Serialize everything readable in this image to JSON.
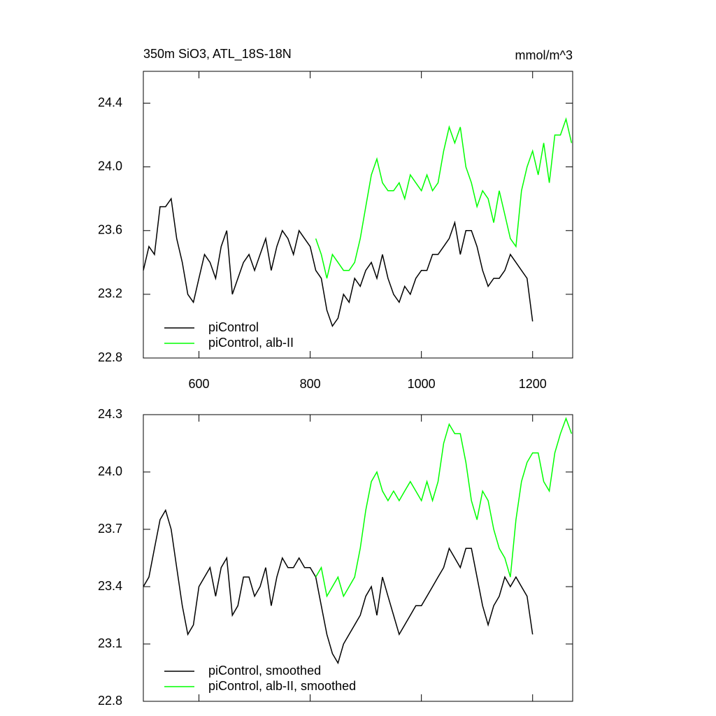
{
  "chart_data": [
    {
      "type": "line",
      "title": "350m SiO3, ATL_18S-18N",
      "units": "mmol/m^3",
      "xlim": [
        500,
        1272
      ],
      "xticks": [
        600,
        800,
        1000,
        1200
      ],
      "show_xtick_labels": true,
      "ylim": [
        22.8,
        24.6
      ],
      "yticks": [
        22.8,
        23.2,
        23.6,
        {
          "value": 24,
          "label": "24.0"
        },
        24.4
      ],
      "legend": "lower left",
      "series": [
        {
          "name": "piControl",
          "color": "#000000",
          "x": [
            500,
            510,
            520,
            530,
            540,
            550,
            560,
            570,
            580,
            590,
            600,
            610,
            620,
            630,
            640,
            650,
            660,
            670,
            680,
            690,
            700,
            710,
            720,
            730,
            740,
            750,
            760,
            770,
            780,
            790,
            800,
            810,
            820,
            830,
            840,
            850,
            860,
            870,
            880,
            890,
            900,
            910,
            920,
            930,
            940,
            950,
            960,
            970,
            980,
            990,
            1000,
            1010,
            1020,
            1030,
            1040,
            1050,
            1060,
            1070,
            1080,
            1090,
            1100,
            1110,
            1120,
            1130,
            1140,
            1150,
            1160,
            1170,
            1180,
            1190,
            1200
          ],
          "values": [
            23.35,
            23.5,
            23.45,
            23.75,
            23.75,
            23.8,
            23.55,
            23.4,
            23.2,
            23.15,
            23.3,
            23.45,
            23.4,
            23.3,
            23.5,
            23.6,
            23.2,
            23.3,
            23.4,
            23.45,
            23.35,
            23.45,
            23.55,
            23.35,
            23.5,
            23.6,
            23.55,
            23.45,
            23.6,
            23.55,
            23.5,
            23.35,
            23.3,
            23.1,
            23.0,
            23.05,
            23.2,
            23.15,
            23.3,
            23.25,
            23.35,
            23.4,
            23.3,
            23.45,
            23.3,
            23.2,
            23.15,
            23.25,
            23.2,
            23.3,
            23.35,
            23.35,
            23.45,
            23.45,
            23.5,
            23.55,
            23.65,
            23.45,
            23.6,
            23.6,
            23.5,
            23.35,
            23.25,
            23.3,
            23.3,
            23.35,
            23.45,
            23.4,
            23.35,
            23.3,
            23.03
          ]
        },
        {
          "name": "piControl, alb-II",
          "color": "#00ff00",
          "x": [
            810,
            820,
            830,
            840,
            850,
            860,
            870,
            880,
            890,
            900,
            910,
            920,
            930,
            940,
            950,
            960,
            970,
            980,
            990,
            1000,
            1010,
            1020,
            1030,
            1040,
            1050,
            1060,
            1070,
            1080,
            1090,
            1100,
            1110,
            1120,
            1130,
            1140,
            1150,
            1160,
            1170,
            1180,
            1190,
            1200,
            1210,
            1220,
            1230,
            1240,
            1250,
            1260,
            1270
          ],
          "values": [
            23.55,
            23.45,
            23.3,
            23.45,
            23.4,
            23.35,
            23.35,
            23.4,
            23.55,
            23.75,
            23.95,
            24.05,
            23.9,
            23.85,
            23.85,
            23.9,
            23.8,
            23.95,
            23.9,
            23.85,
            23.95,
            23.85,
            23.9,
            24.1,
            24.25,
            24.15,
            24.25,
            24.0,
            23.9,
            23.75,
            23.85,
            23.8,
            23.65,
            23.85,
            23.7,
            23.55,
            23.5,
            23.85,
            24.0,
            24.1,
            23.95,
            24.15,
            23.9,
            24.2,
            24.2,
            24.3,
            24.15
          ]
        }
      ]
    },
    {
      "type": "line",
      "xlim": [
        500,
        1272
      ],
      "xticks": [
        600,
        800,
        1000,
        1200
      ],
      "show_xtick_labels": false,
      "ylim": [
        22.8,
        24.3
      ],
      "yticks": [
        22.8,
        23.1,
        23.4,
        23.7,
        {
          "value": 24,
          "label": "24.0"
        },
        24.3
      ],
      "legend": "lower left",
      "series": [
        {
          "name": "piControl, smoothed",
          "color": "#000000",
          "x": [
            500,
            510,
            520,
            530,
            540,
            550,
            560,
            570,
            580,
            590,
            600,
            610,
            620,
            630,
            640,
            650,
            660,
            670,
            680,
            690,
            700,
            710,
            720,
            730,
            740,
            750,
            760,
            770,
            780,
            790,
            800,
            810,
            820,
            830,
            840,
            850,
            860,
            870,
            880,
            890,
            900,
            910,
            920,
            930,
            940,
            950,
            960,
            970,
            980,
            990,
            1000,
            1010,
            1020,
            1030,
            1040,
            1050,
            1060,
            1070,
            1080,
            1090,
            1100,
            1110,
            1120,
            1130,
            1140,
            1150,
            1160,
            1170,
            1180,
            1190,
            1200
          ],
          "values": [
            23.4,
            23.45,
            23.6,
            23.75,
            23.8,
            23.7,
            23.5,
            23.3,
            23.15,
            23.2,
            23.4,
            23.45,
            23.5,
            23.35,
            23.5,
            23.55,
            23.25,
            23.3,
            23.45,
            23.45,
            23.35,
            23.4,
            23.5,
            23.3,
            23.45,
            23.55,
            23.5,
            23.5,
            23.55,
            23.5,
            23.5,
            23.45,
            23.3,
            23.15,
            23.05,
            23.0,
            23.1,
            23.15,
            23.2,
            23.25,
            23.35,
            23.4,
            23.25,
            23.45,
            23.35,
            23.25,
            23.15,
            23.2,
            23.25,
            23.3,
            23.3,
            23.35,
            23.4,
            23.45,
            23.5,
            23.6,
            23.55,
            23.5,
            23.6,
            23.6,
            23.45,
            23.3,
            23.2,
            23.3,
            23.35,
            23.45,
            23.4,
            23.45,
            23.4,
            23.35,
            23.15
          ]
        },
        {
          "name": "piControl, alb-II, smoothed",
          "color": "#00ff00",
          "x": [
            810,
            820,
            830,
            840,
            850,
            860,
            870,
            880,
            890,
            900,
            910,
            920,
            930,
            940,
            950,
            960,
            970,
            980,
            990,
            1000,
            1010,
            1020,
            1030,
            1040,
            1050,
            1060,
            1070,
            1080,
            1090,
            1100,
            1110,
            1120,
            1130,
            1140,
            1150,
            1160,
            1170,
            1180,
            1190,
            1200,
            1210,
            1220,
            1230,
            1240,
            1250,
            1260,
            1270
          ],
          "values": [
            23.45,
            23.5,
            23.35,
            23.4,
            23.45,
            23.35,
            23.4,
            23.45,
            23.6,
            23.8,
            23.95,
            24.0,
            23.9,
            23.85,
            23.9,
            23.85,
            23.9,
            23.95,
            23.9,
            23.85,
            23.95,
            23.85,
            23.95,
            24.15,
            24.25,
            24.2,
            24.2,
            24.05,
            23.85,
            23.75,
            23.9,
            23.85,
            23.7,
            23.6,
            23.55,
            23.45,
            23.75,
            23.95,
            24.05,
            24.1,
            24.1,
            23.95,
            23.9,
            24.1,
            24.2,
            24.28,
            24.2
          ]
        }
      ]
    }
  ]
}
